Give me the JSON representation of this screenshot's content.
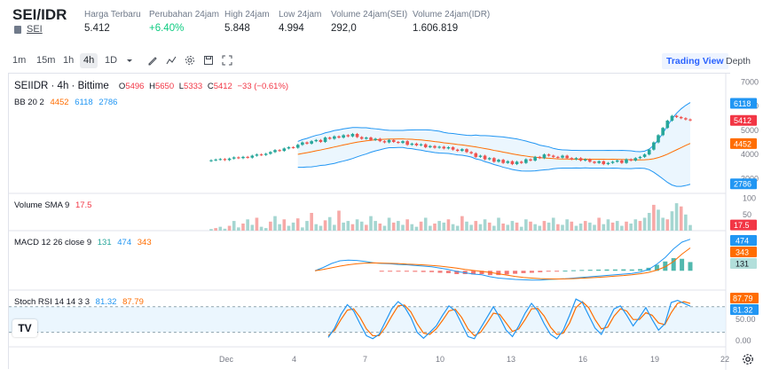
{
  "ticker": {
    "pair": "SEI/IDR",
    "sub_label": "SEI",
    "stats": [
      {
        "label": "Harga Terbaru",
        "value": "5.412",
        "trend": "neutral"
      },
      {
        "label": "Perubahan 24jam",
        "value": "+6.40%",
        "trend": "up"
      },
      {
        "label": "High 24jam",
        "value": "5.848",
        "trend": "neutral"
      },
      {
        "label": "Low 24jam",
        "value": "4.994",
        "trend": "neutral"
      },
      {
        "label": "Volume 24jam(SEI)",
        "value": "292,0",
        "trend": "neutral"
      },
      {
        "label": "Volume 24jam(IDR)",
        "value": "1.606.819",
        "trend": "neutral"
      }
    ]
  },
  "toolbar": {
    "timeframes": [
      "1m",
      "15m",
      "1h",
      "4h",
      "1D"
    ],
    "active_timeframe": "4h",
    "tools": [
      "dropdown-icon",
      "draw-icon",
      "indicators-icon",
      "settings-icon",
      "save-icon",
      "fullscreen-icon"
    ],
    "views": [
      "Trading View",
      "Depth"
    ],
    "active_view": "Trading View"
  },
  "main_legend": {
    "symbol": "SEIIDR · 4h · Bittime",
    "open_label": "O",
    "open": "5496",
    "high_label": "H",
    "high": "5650",
    "low_label": "L",
    "low": "5333",
    "close_label": "C",
    "close": "5412",
    "change": "−33 (−0.61%)"
  },
  "bb_legend": {
    "name": "BB 20 2",
    "v1": "4452",
    "v2": "6118",
    "v3": "2786"
  },
  "volume_legend": {
    "name": "Volume SMA 9",
    "value": "17.5"
  },
  "macd_legend": {
    "name": "MACD 12 26 close 9",
    "hist": "131",
    "macd": "474",
    "signal": "343"
  },
  "stoch_legend": {
    "name": "Stoch RSI 14 14 3 3",
    "k": "81.32",
    "d": "87.79"
  },
  "price_axis": {
    "ticks": [
      "7000",
      "6000",
      "5000",
      "4000",
      "3000"
    ],
    "badges": [
      {
        "label": "6118",
        "color": "#2196f3",
        "value": 6118
      },
      {
        "label": "5412",
        "color": "#f23645",
        "value": 5412
      },
      {
        "label": "4452",
        "color": "#ff6d00",
        "value": 4452
      },
      {
        "label": "2786",
        "color": "#2196f3",
        "value": 2786
      }
    ]
  },
  "volume_axis": {
    "ticks": [
      "100",
      "50"
    ],
    "badge": "17.5"
  },
  "macd_axis": {
    "badges": [
      {
        "label": "474",
        "color": "#2196f3"
      },
      {
        "label": "343",
        "color": "#ff6d00"
      },
      {
        "label": "131",
        "color": "#b2dfdb"
      }
    ]
  },
  "stoch_axis": {
    "ticks": [
      "50.00",
      "0.00"
    ],
    "badges": [
      {
        "label": "87.79",
        "color": "#ff6d00"
      },
      {
        "label": "81.32",
        "color": "#2196f3"
      }
    ]
  },
  "time_axis": [
    "Dec",
    "4",
    "7",
    "10",
    "13",
    "16",
    "19",
    "22"
  ],
  "colors": {
    "up": "#26a69a",
    "down": "#ef5350",
    "bb": "#2196f3",
    "basis": "#ff6d00",
    "fill": "#e3f2fd"
  },
  "chart_data": {
    "type": "candlestick",
    "price_ylim": [
      2500,
      7200
    ],
    "closes": [
      3760,
      3790,
      3810,
      3770,
      3830,
      3880,
      3850,
      3900,
      3870,
      3950,
      4000,
      3980,
      4030,
      4100,
      4180,
      4150,
      4250,
      4300,
      4280,
      4400,
      4500,
      4450,
      4550,
      4600,
      4520,
      4700,
      4650,
      4750,
      4700,
      4800,
      4750,
      4850,
      4720,
      4650,
      4700,
      4600,
      4650,
      4550,
      4500,
      4600,
      4520,
      4480,
      4550,
      4400,
      4450,
      4380,
      4420,
      4300,
      4350,
      4280,
      4320,
      4250,
      4300,
      4200,
      4150,
      4220,
      4100,
      4050,
      3900,
      3950,
      3800,
      3850,
      3700,
      3780,
      3650,
      3720,
      3600,
      3700,
      3650,
      3800,
      3750,
      3900,
      3850,
      4000,
      3950,
      3900,
      3870,
      3950,
      3850,
      3800,
      3850,
      3750,
      3800,
      3700,
      3650,
      3720,
      3600,
      3650,
      3700,
      3750,
      3650,
      3800,
      3750,
      3850,
      3900,
      4000,
      4200,
      4500,
      4800,
      5100,
      5400,
      5600,
      5550,
      5500,
      5450,
      5412
    ],
    "bb_upper_end": 6118,
    "bb_basis_end": 4452,
    "bb_lower_end": 2786,
    "volume_ylim": [
      0,
      110
    ],
    "volumes": [
      5,
      8,
      12,
      6,
      15,
      30,
      10,
      22,
      35,
      18,
      40,
      12,
      8,
      28,
      45,
      20,
      35,
      15,
      25,
      38,
      10,
      30,
      55,
      20,
      15,
      32,
      42,
      18,
      62,
      25,
      30,
      20,
      35,
      28,
      18,
      45,
      30,
      22,
      15,
      40,
      25,
      30,
      18,
      35,
      20,
      12,
      28,
      40,
      15,
      22,
      30,
      25,
      35,
      20,
      15,
      45,
      28,
      18,
      30,
      20,
      35,
      25,
      15,
      40,
      22,
      18,
      30,
      25,
      12,
      35,
      28,
      20,
      15,
      30,
      25,
      40,
      20,
      18,
      35,
      28,
      15,
      22,
      30,
      25,
      18,
      40,
      20,
      35,
      25,
      30,
      15,
      28,
      22,
      35,
      30,
      40,
      55,
      80,
      65,
      40,
      35,
      60,
      85,
      75,
      50,
      17.5
    ],
    "macd_ylim": [
      -250,
      550
    ],
    "macd": [
      0,
      50,
      110,
      150,
      160,
      155,
      140,
      120,
      110,
      105,
      95,
      90,
      80,
      70,
      60,
      40,
      20,
      -10,
      -30,
      -50,
      -60,
      -90,
      -110,
      -120,
      -130,
      -135,
      -140,
      -140,
      -130,
      -125,
      -120,
      -110,
      -100,
      -90,
      -80,
      -70,
      -60,
      -50,
      -40,
      -20,
      20,
      100,
      200,
      330,
      430,
      474
    ],
    "signal": [
      0,
      20,
      45,
      70,
      90,
      105,
      115,
      118,
      115,
      112,
      108,
      100,
      95,
      88,
      80,
      70,
      55,
      40,
      20,
      5,
      -10,
      -25,
      -45,
      -65,
      -85,
      -100,
      -110,
      -118,
      -122,
      -124,
      -122,
      -118,
      -112,
      -105,
      -98,
      -90,
      -80,
      -72,
      -60,
      -45,
      -25,
      10,
      60,
      140,
      250,
      343
    ],
    "stoch_ylim": [
      -10,
      115
    ],
    "stoch_k": [
      8,
      30,
      62,
      85,
      70,
      40,
      12,
      5,
      15,
      45,
      75,
      92,
      80,
      55,
      20,
      6,
      20,
      35,
      60,
      82,
      70,
      40,
      10,
      5,
      30,
      55,
      80,
      55,
      25,
      10,
      35,
      65,
      88,
      70,
      40,
      15,
      5,
      25,
      60,
      98,
      90,
      60,
      30,
      15,
      45,
      75,
      82,
      60,
      35,
      55,
      78,
      50,
      25,
      40,
      90,
      95,
      88,
      81.32
    ],
    "stoch_d": [
      12,
      25,
      50,
      72,
      75,
      55,
      28,
      12,
      12,
      32,
      58,
      82,
      84,
      68,
      40,
      18,
      15,
      28,
      48,
      70,
      74,
      55,
      28,
      12,
      20,
      42,
      65,
      62,
      42,
      22,
      28,
      50,
      75,
      76,
      58,
      32,
      15,
      18,
      42,
      78,
      92,
      78,
      50,
      28,
      32,
      58,
      75,
      70,
      50,
      50,
      66,
      60,
      42,
      38,
      66,
      88,
      92,
      87.79
    ]
  }
}
